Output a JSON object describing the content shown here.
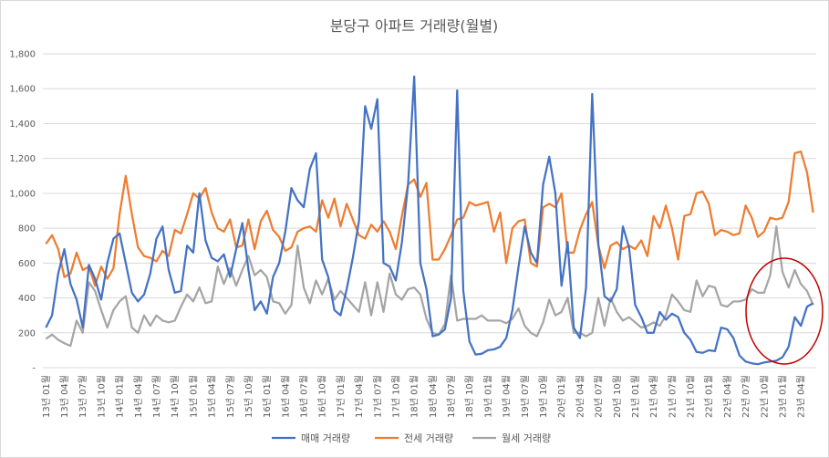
{
  "chart_data": {
    "type": "line",
    "title": "분당구 아파트 거래량(월별)",
    "xlabel": "",
    "ylabel": "",
    "ylim": [
      0,
      1800
    ],
    "yticks": [
      0,
      200,
      400,
      600,
      800,
      1000,
      1200,
      1400,
      1600,
      1800
    ],
    "ytick_labels": [
      "-",
      "200",
      "400",
      "600",
      "800",
      "1,000",
      "1,200",
      "1,400",
      "1,600",
      "1,800"
    ],
    "grid": true,
    "legend_position": "bottom",
    "tick_labels": [
      "13년 01월",
      "13년 04월",
      "13년 07월",
      "13년 10월",
      "14년 01월",
      "14년 04월",
      "14년 07월",
      "14년 10월",
      "15년 01월",
      "15년 04월",
      "15년 07월",
      "15년 10월",
      "16년 01월",
      "16년 04월",
      "16년 07월",
      "16년 10월",
      "17년 01월",
      "17년 04월",
      "17년 07월",
      "17년 10월",
      "18년 01월",
      "18년 04월",
      "18년 07월",
      "18년 10월",
      "19년 01월",
      "19년 04월",
      "19년 07월",
      "19년 10월",
      "20년 01월",
      "20년 04월",
      "20년 07월",
      "20년 10월",
      "21년 01월",
      "21년 04월",
      "21년 07월",
      "21년 10월",
      "22년 01월",
      "22년 04월",
      "22년 07월",
      "22년 10월",
      "23년 01월",
      "23년 04월"
    ],
    "tick_interval": 3,
    "series": [
      {
        "name": "매매 거래량",
        "color": "#4472C4",
        "values": [
          230,
          300,
          540,
          680,
          480,
          390,
          230,
          590,
          510,
          390,
          600,
          740,
          770,
          600,
          430,
          380,
          420,
          540,
          740,
          810,
          560,
          430,
          440,
          700,
          660,
          1000,
          730,
          630,
          610,
          650,
          520,
          680,
          830,
          560,
          330,
          380,
          310,
          520,
          600,
          780,
          1030,
          960,
          920,
          1140,
          1230,
          620,
          520,
          330,
          300,
          450,
          630,
          840,
          1500,
          1370,
          1540,
          600,
          580,
          500,
          720,
          1050,
          1670,
          600,
          450,
          180,
          190,
          220,
          400,
          1590,
          440,
          150,
          75,
          80,
          100,
          105,
          120,
          170,
          330,
          580,
          810,
          660,
          600,
          1050,
          1210,
          1000,
          470,
          720,
          230,
          170,
          460,
          1570,
          710,
          410,
          380,
          450,
          810,
          690,
          360,
          290,
          200,
          200,
          320,
          275,
          310,
          290,
          200,
          160,
          90,
          85,
          100,
          95,
          230,
          220,
          170,
          70,
          35,
          25,
          20,
          30,
          35,
          40,
          60,
          120,
          290,
          240,
          350,
          370
        ]
      },
      {
        "name": "전세 거래량",
        "color": "#ED7D31",
        "values": [
          710,
          760,
          680,
          520,
          540,
          660,
          560,
          580,
          470,
          580,
          510,
          570,
          880,
          1100,
          880,
          690,
          640,
          630,
          610,
          670,
          640,
          790,
          770,
          880,
          1000,
          970,
          1030,
          890,
          800,
          780,
          850,
          690,
          700,
          850,
          680,
          840,
          900,
          790,
          750,
          670,
          690,
          780,
          800,
          810,
          780,
          960,
          860,
          970,
          810,
          940,
          850,
          760,
          740,
          820,
          780,
          840,
          780,
          680,
          870,
          1050,
          1080,
          980,
          1060,
          620,
          620,
          680,
          760,
          850,
          860,
          950,
          930,
          940,
          950,
          780,
          890,
          600,
          800,
          840,
          850,
          600,
          580,
          920,
          940,
          920,
          1000,
          660,
          660,
          790,
          880,
          950,
          700,
          570,
          700,
          720,
          680,
          700,
          680,
          730,
          640,
          870,
          800,
          930,
          800,
          620,
          870,
          880,
          1000,
          1010,
          940,
          760,
          790,
          780,
          760,
          770,
          930,
          860,
          750,
          780,
          860,
          850,
          860,
          950,
          1230,
          1240,
          1120,
          890
        ]
      },
      {
        "name": "월세 거래량",
        "color": "#A5A5A5",
        "values": [
          165,
          190,
          160,
          140,
          125,
          270,
          200,
          490,
          440,
          330,
          230,
          330,
          380,
          410,
          230,
          200,
          300,
          240,
          300,
          270,
          260,
          270,
          350,
          420,
          380,
          460,
          370,
          380,
          580,
          480,
          570,
          470,
          560,
          640,
          530,
          560,
          520,
          380,
          370,
          310,
          360,
          700,
          460,
          370,
          500,
          420,
          510,
          390,
          440,
          400,
          360,
          320,
          490,
          300,
          490,
          320,
          540,
          420,
          390,
          450,
          460,
          420,
          280,
          200,
          190,
          250,
          530,
          270,
          280,
          280,
          280,
          300,
          270,
          270,
          270,
          255,
          280,
          340,
          240,
          200,
          180,
          260,
          390,
          300,
          320,
          400,
          200,
          200,
          180,
          200,
          400,
          240,
          400,
          320,
          270,
          290,
          260,
          230,
          240,
          260,
          240,
          300,
          420,
          380,
          330,
          320,
          500,
          410,
          470,
          460,
          360,
          350,
          380,
          380,
          390,
          450,
          430,
          430,
          530,
          810,
          550,
          460,
          560,
          480,
          440,
          360
        ]
      }
    ]
  }
}
